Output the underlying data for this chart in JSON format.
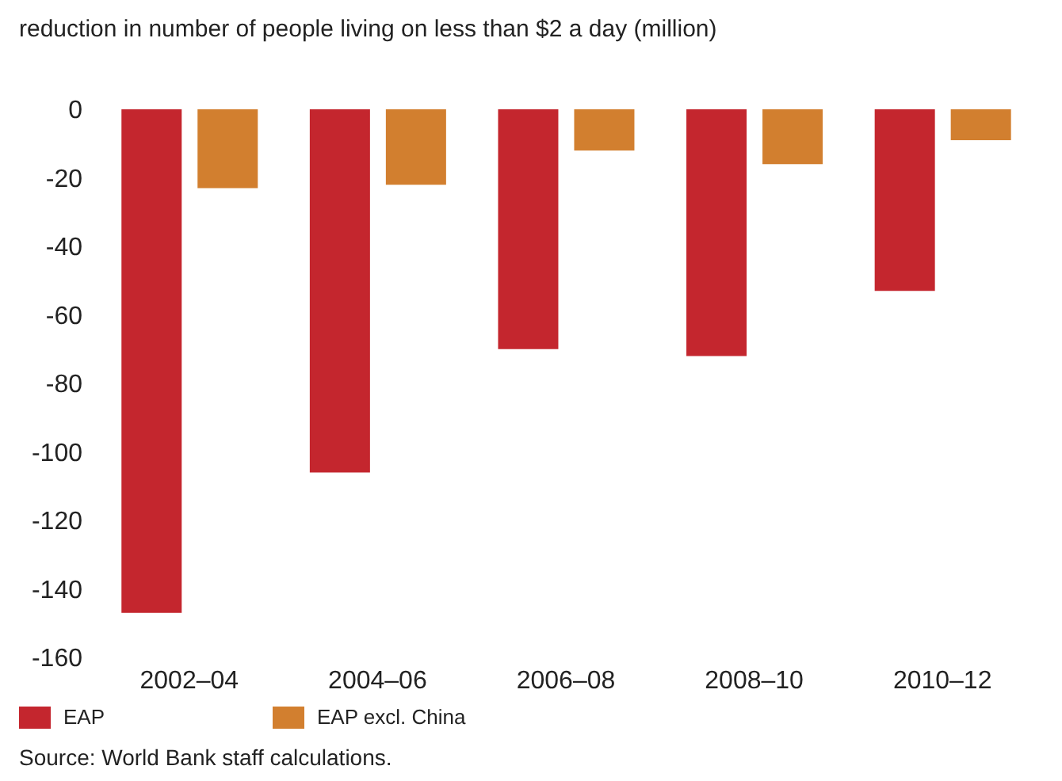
{
  "chart_data": {
    "type": "bar",
    "title": "reduction in number of people living on less than $2 a day (million)",
    "categories": [
      "2002–04",
      "2004–06",
      "2006–08",
      "2008–10",
      "2010–12"
    ],
    "series": [
      {
        "name": "EAP",
        "color": "#c4262e",
        "values": [
          -147,
          -106,
          -70,
          -72,
          -53
        ]
      },
      {
        "name": "EAP excl. China",
        "color": "#d27f2f",
        "values": [
          -23,
          -22,
          -12,
          -16,
          -9
        ]
      }
    ],
    "ylim": [
      -160,
      0
    ],
    "yticks": [
      -160,
      -140,
      -120,
      -100,
      -80,
      -60,
      -40,
      -20,
      0
    ],
    "grid": false,
    "legend": "bottom",
    "annotations": [
      "Source: World Bank staff calculations."
    ]
  }
}
